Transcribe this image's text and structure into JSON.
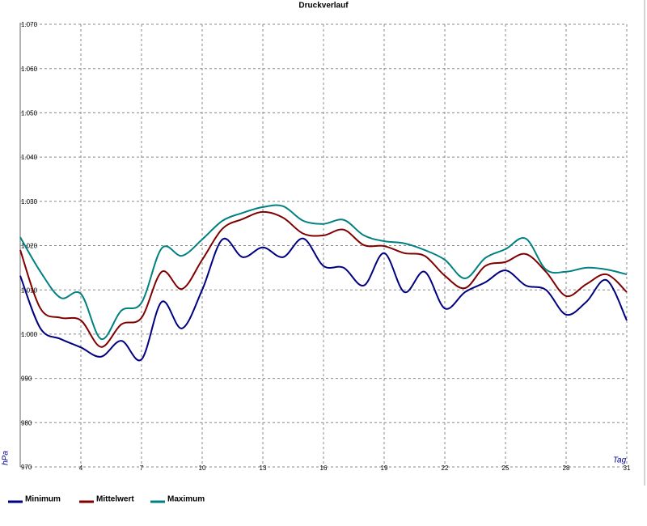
{
  "chart_data": {
    "type": "line",
    "title": "Druckverlauf",
    "xlabel": "Tag",
    "ylabel": "hPa",
    "x": [
      1,
      2,
      3,
      4,
      5,
      6,
      7,
      8,
      9,
      10,
      11,
      12,
      13,
      14,
      15,
      16,
      17,
      18,
      19,
      20,
      21,
      22,
      23,
      24,
      25,
      26,
      27,
      28,
      29,
      30,
      31
    ],
    "series": [
      {
        "name": "Minimum",
        "color": "#000080",
        "values": [
          1013.2,
          1001.3,
          998.9,
          997,
          994.9,
          998.5,
          994.3,
          1007.3,
          1001.3,
          1010,
          1021.4,
          1017.4,
          1019.6,
          1017.4,
          1021.6,
          1015.4,
          1015,
          1011,
          1018.3,
          1009.5,
          1014.1,
          1005.8,
          1009.5,
          1011.7,
          1014.4,
          1011,
          1010,
          1004.4,
          1007.3,
          1012.2,
          1003.1
        ]
      },
      {
        "name": "Mittelwert",
        "color": "#800000",
        "values": [
          1019,
          1005.8,
          1003.7,
          1003.1,
          997.1,
          1002.2,
          1003.7,
          1014.1,
          1010.2,
          1016.8,
          1023.8,
          1026,
          1027.6,
          1026.3,
          1022.7,
          1022.3,
          1023.6,
          1020.1,
          1019.9,
          1018.3,
          1017.7,
          1013.2,
          1010.4,
          1015.4,
          1016.3,
          1018.1,
          1014.1,
          1008.6,
          1011.3,
          1013.5,
          1009.5
        ]
      },
      {
        "name": "Maximum",
        "color": "#008080",
        "values": [
          1021.9,
          1014.1,
          1008.2,
          1009.1,
          998.9,
          1005.3,
          1007.1,
          1019.4,
          1017.7,
          1021.4,
          1025.6,
          1027.4,
          1028.7,
          1028.9,
          1025.6,
          1024.9,
          1025.8,
          1022.3,
          1021,
          1020.5,
          1019,
          1016.8,
          1012.6,
          1017.2,
          1019.2,
          1021.6,
          1014.6,
          1014.1,
          1015,
          1014.6,
          1013.5
        ]
      }
    ],
    "xlim": [
      1,
      31
    ],
    "xticks": [
      4,
      7,
      10,
      13,
      16,
      19,
      22,
      25,
      28,
      31
    ],
    "ylim": [
      970,
      1070
    ],
    "yticks": [
      970,
      980,
      990,
      {
        "value": 1000,
        "label": "1.000"
      },
      {
        "value": 1010,
        "label": "1.010"
      },
      {
        "value": 1020,
        "label": "1.020"
      },
      {
        "value": 1030,
        "label": "1.030"
      },
      {
        "value": 1040,
        "label": "1.040"
      },
      {
        "value": 1050,
        "label": "1.050"
      },
      {
        "value": 1060,
        "label": "1.060"
      },
      {
        "value": 1070,
        "label": "1.070"
      }
    ],
    "grid": true,
    "legend": "bottom"
  }
}
